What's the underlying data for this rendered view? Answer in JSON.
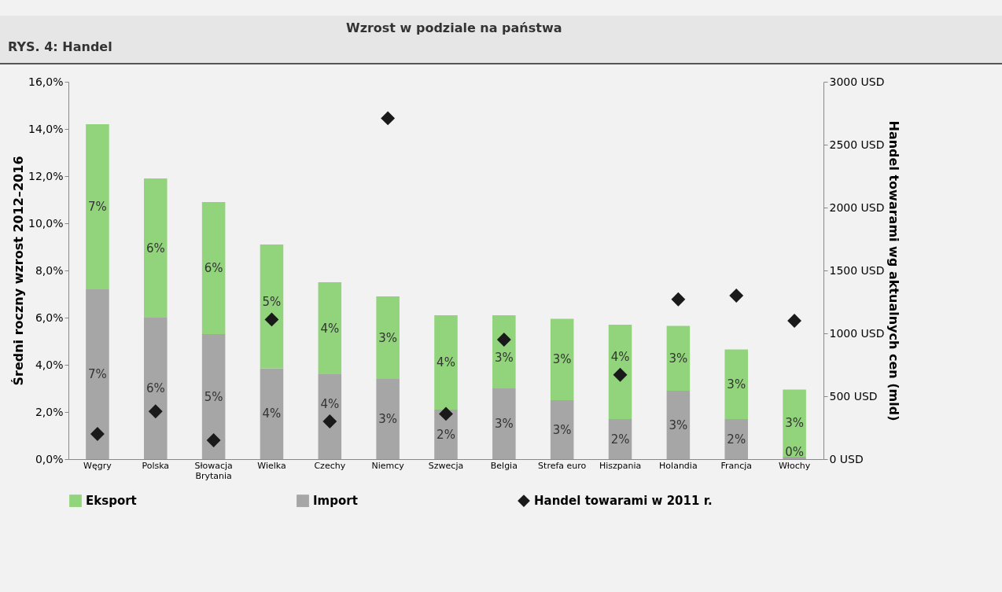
{
  "chart_data": {
    "type": "bar",
    "title": "Wzrost w podziale na państwa",
    "annotations": [
      "RYS. 4: Handel"
    ],
    "ylabel": "Średni roczny wzrost 2012–2016",
    "y2label": "Handel towarami wg aktualnych cen (mld)",
    "categories": [
      "Węgry",
      "Polska",
      "Słowacja\nBrytania",
      "Wielka",
      "Czechy",
      "Niemcy",
      "Szwecja",
      "Belgia",
      "Strefa euro",
      "Hiszpania",
      "Holandia",
      "Francja",
      "Włochy"
    ],
    "stacked": true,
    "legend": "bottom",
    "grid": false,
    "ylim": [
      0,
      16
    ],
    "yticks": [
      {
        "value": 0,
        "label": "0,0%"
      },
      {
        "value": 2,
        "label": "2,0%"
      },
      {
        "value": 4,
        "label": "4,0%"
      },
      {
        "value": 6,
        "label": "6,0%"
      },
      {
        "value": 8,
        "label": "8,0%"
      },
      {
        "value": 10,
        "label": "10,0%"
      },
      {
        "value": 12,
        "label": "12,0%"
      },
      {
        "value": 14,
        "label": "14,0%"
      },
      {
        "value": 16,
        "label": "16,0%"
      }
    ],
    "y2lim": [
      0,
      3000
    ],
    "y2ticks": [
      {
        "value": 0,
        "label": "0 USD"
      },
      {
        "value": 500,
        "label": "500 USD"
      },
      {
        "value": 1000,
        "label": "1000 USD"
      },
      {
        "value": 1500,
        "label": "1500 USD"
      },
      {
        "value": 2000,
        "label": "2000 USD"
      },
      {
        "value": 2500,
        "label": "2500 USD"
      },
      {
        "value": 3000,
        "label": "3000 USD"
      }
    ],
    "series": [
      {
        "name": "Import",
        "color": "#a6a6a6",
        "values": [
          7.2,
          6.0,
          5.3,
          3.85,
          3.6,
          3.4,
          2.1,
          3.0,
          2.5,
          1.7,
          2.9,
          1.7,
          0.1
        ],
        "value_labels": [
          "7%",
          "6%",
          "5%",
          "4%",
          "4%",
          "3%",
          "2%",
          "3%",
          "3%",
          "2%",
          "3%",
          "2%",
          "0%"
        ]
      },
      {
        "name": "Eksport",
        "color": "#92d47c",
        "values": [
          7.0,
          5.9,
          5.6,
          5.25,
          3.9,
          3.5,
          4.0,
          3.1,
          3.45,
          4.0,
          2.75,
          2.95,
          2.85
        ],
        "value_labels": [
          "7%",
          "6%",
          "6%",
          "5%",
          "4%",
          "3%",
          "4%",
          "3%",
          "3%",
          "4%",
          "3%",
          "3%",
          "3%"
        ]
      },
      {
        "name": "Handel towarami w 2011 r.",
        "type": "scatter",
        "axis": "y2",
        "marker": "diamond",
        "color": "#1a1a1a",
        "values": [
          200,
          380,
          150,
          1110,
          300,
          2710,
          360,
          950,
          null,
          670,
          1270,
          1300,
          1100
        ]
      }
    ]
  }
}
